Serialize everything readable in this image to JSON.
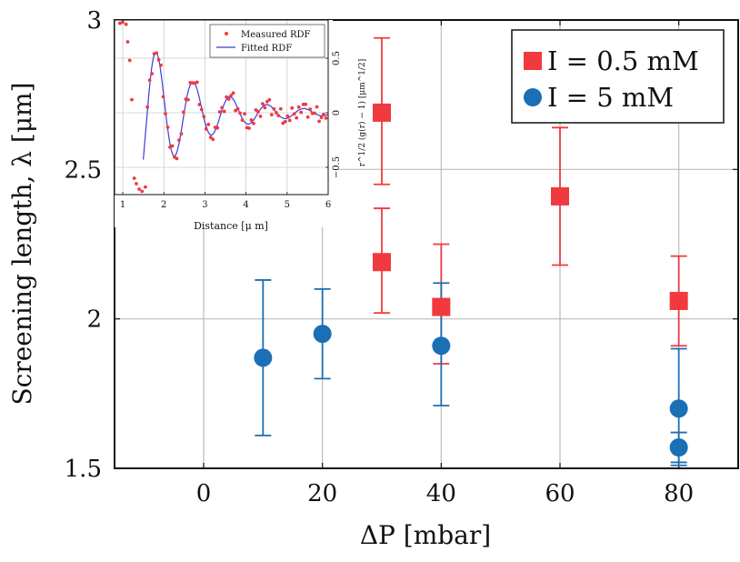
{
  "chart_data": [
    {
      "type": "scatter",
      "xlabel": "ΔP [mbar]",
      "ylabel": "Screening length, λ [μm]",
      "xlim": [
        -15,
        90
      ],
      "ylim": [
        1.5,
        3.0
      ],
      "xticks": [
        "0",
        "20",
        "40",
        "60",
        "80"
      ],
      "yticks": [
        "1.5",
        "2",
        "2.5",
        "3"
      ],
      "grid": true,
      "legend_position": "top-right",
      "series": [
        {
          "name": "I = 0.5 mM",
          "marker": "square",
          "color": "#f03a3f",
          "points": [
            {
              "x": 30,
              "y": 2.69,
              "err_lo": 2.45,
              "err_hi": 2.94
            },
            {
              "x": 30,
              "y": 2.19,
              "err_lo": 2.02,
              "err_hi": 2.37
            },
            {
              "x": 40,
              "y": 2.04,
              "err_lo": 1.85,
              "err_hi": 2.25
            },
            {
              "x": 60,
              "y": 2.41,
              "err_lo": 2.18,
              "err_hi": 2.64
            },
            {
              "x": 80,
              "y": 2.06,
              "err_lo": 1.91,
              "err_hi": 2.21
            }
          ]
        },
        {
          "name": "I = 5 mM",
          "marker": "circle",
          "color": "#1a6fb5",
          "points": [
            {
              "x": 10,
              "y": 1.87,
              "err_lo": 1.61,
              "err_hi": 2.13
            },
            {
              "x": 20,
              "y": 1.95,
              "err_lo": 1.8,
              "err_hi": 2.1
            },
            {
              "x": 40,
              "y": 1.91,
              "err_lo": 1.71,
              "err_hi": 2.12
            },
            {
              "x": 80,
              "y": 1.7,
              "err_lo": 1.52,
              "err_hi": 1.9
            },
            {
              "x": 80,
              "y": 1.57,
              "err_lo": 1.51,
              "err_hi": 1.62
            }
          ]
        }
      ]
    },
    {
      "type": "scatter",
      "xlabel": "Distance [μ m]",
      "ylabel": "r^1/2 (g(r) − 1) [μm^1/2]",
      "xlim": [
        0.8,
        6
      ],
      "ylim": [
        -0.75,
        0.85
      ],
      "xticks": [
        "1",
        "2",
        "3",
        "4",
        "5",
        "6"
      ],
      "yticks": [
        "0.5",
        "0",
        "−0.5"
      ],
      "grid": true,
      "legend_position": "top-right",
      "legend": [
        "Measured RDF",
        "Fitted RDF"
      ],
      "colors": {
        "measured": "#f03a3f",
        "fitted": "#3b3bdd"
      },
      "fit": {
        "amplitude": 0.55,
        "decay": 1.35,
        "period": 0.9,
        "phase_x": 1.82,
        "start": 1.5
      },
      "measured_x_step": 0.055,
      "measured_x_range": [
        0.85,
        5.95
      ],
      "core_points": [
        [
          0.93,
          0.82
        ],
        [
          1.0,
          0.83
        ],
        [
          1.08,
          0.81
        ],
        [
          1.12,
          0.65
        ],
        [
          1.17,
          0.48
        ],
        [
          1.22,
          0.12
        ],
        [
          1.28,
          -0.6
        ],
        [
          1.33,
          -0.65
        ],
        [
          1.4,
          -0.7
        ],
        [
          1.47,
          -0.72
        ],
        [
          1.55,
          -0.68
        ]
      ]
    }
  ]
}
